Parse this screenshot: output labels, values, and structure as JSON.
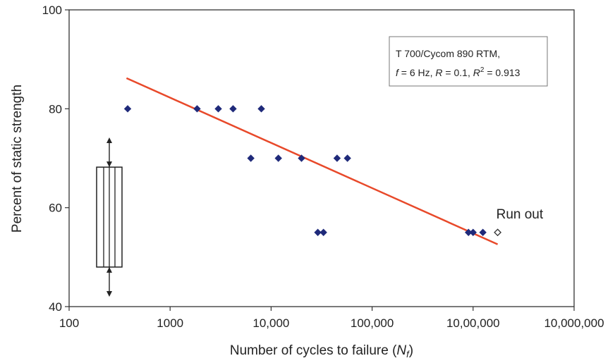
{
  "chart_data": {
    "type": "scatter",
    "x_scale": "log",
    "xlim": [
      100,
      10000000
    ],
    "ylim": [
      40,
      100
    ],
    "grid": false,
    "xlabel": "Number of cycles to failure (",
    "xlabel_var": "N",
    "xlabel_sub": "f",
    "xlabel_close": ")",
    "ylabel": "Percent of static strength",
    "x_ticks": [
      {
        "value": 100,
        "label": "100"
      },
      {
        "value": 1000,
        "label": "1000"
      },
      {
        "value": 10000,
        "label": "10,000"
      },
      {
        "value": 100000,
        "label": "100,000"
      },
      {
        "value": 1000000,
        "label": "10,00,000"
      },
      {
        "value": 10000000,
        "label": "10,000,000"
      }
    ],
    "y_ticks": [
      {
        "value": 40,
        "label": "40"
      },
      {
        "value": 60,
        "label": "60"
      },
      {
        "value": 80,
        "label": "80"
      },
      {
        "value": 100,
        "label": "100"
      }
    ],
    "points": [
      {
        "x": 380,
        "y": 80
      },
      {
        "x": 1850,
        "y": 80
      },
      {
        "x": 3000,
        "y": 80
      },
      {
        "x": 4200,
        "y": 80
      },
      {
        "x": 8000,
        "y": 80
      },
      {
        "x": 6300,
        "y": 70
      },
      {
        "x": 11800,
        "y": 70
      },
      {
        "x": 20000,
        "y": 70
      },
      {
        "x": 45000,
        "y": 70
      },
      {
        "x": 57000,
        "y": 70
      },
      {
        "x": 29000,
        "y": 55
      },
      {
        "x": 33000,
        "y": 55
      },
      {
        "x": 900000,
        "y": 55
      },
      {
        "x": 1000000,
        "y": 55
      },
      {
        "x": 1250000,
        "y": 55
      }
    ],
    "runout_point": {
      "x": 1750000,
      "y": 55,
      "label": "Run out"
    },
    "trendline": {
      "x": [
        370,
        1750000
      ],
      "y": [
        86.2,
        52.6
      ]
    },
    "scatter_band": {
      "x": 250,
      "box_y": [
        48,
        68.2
      ],
      "arrow_y": [
        42,
        74.2
      ]
    },
    "legend": {
      "line1": "T 700/Cycom 890 RTM,",
      "f_var": "f",
      "f_text": " = 6 Hz, ",
      "r_var": "R",
      "r_text": " = 0.1, ",
      "r2_var": "R",
      "r2_sup": "2",
      "r2_text": " = 0.913",
      "placement": "top-right"
    },
    "colors": {
      "points": "#1f2a7a",
      "trendline": "#e8492a",
      "axis": "#333333"
    }
  }
}
